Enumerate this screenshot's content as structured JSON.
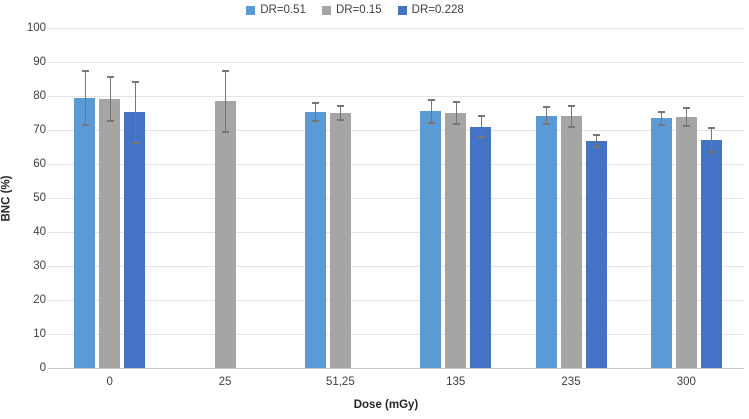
{
  "chart_data": {
    "type": "bar",
    "title": "",
    "xlabel": "Dose (mGy)",
    "ylabel": "BNC (%)",
    "ylim": [
      0,
      100
    ],
    "ytick_step": 10,
    "yticks": [
      "0",
      "10",
      "20",
      "30",
      "40",
      "50",
      "60",
      "70",
      "80",
      "90",
      "100"
    ],
    "grid": true,
    "legend_position": "top-center",
    "categories": [
      "0",
      "25",
      "51,25",
      "135",
      "235",
      "300"
    ],
    "series": [
      {
        "name": "DR=0.51",
        "color": "#5B9BD5",
        "values": [
          79.5,
          null,
          75.3,
          75.5,
          74.2,
          73.4
        ],
        "errors": [
          8.0,
          null,
          2.6,
          3.3,
          2.5,
          1.9
        ]
      },
      {
        "name": "DR=0.15",
        "color": "#A5A5A5",
        "values": [
          79.2,
          78.5,
          75.0,
          75.0,
          74.0,
          73.8
        ],
        "errors": [
          6.5,
          9.0,
          2.0,
          3.1,
          3.0,
          2.7
        ]
      },
      {
        "name": "DR=0.228",
        "color": "#4472C4",
        "values": [
          75.2,
          null,
          null,
          71.0,
          66.8,
          67.0
        ],
        "errors": [
          8.9,
          null,
          null,
          3.1,
          1.7,
          3.5
        ]
      }
    ],
    "colors": {
      "error_bar": "#767676",
      "gridline": "#E4E4E4",
      "axis_line": "#C9C9C9",
      "text": "#404040"
    }
  }
}
